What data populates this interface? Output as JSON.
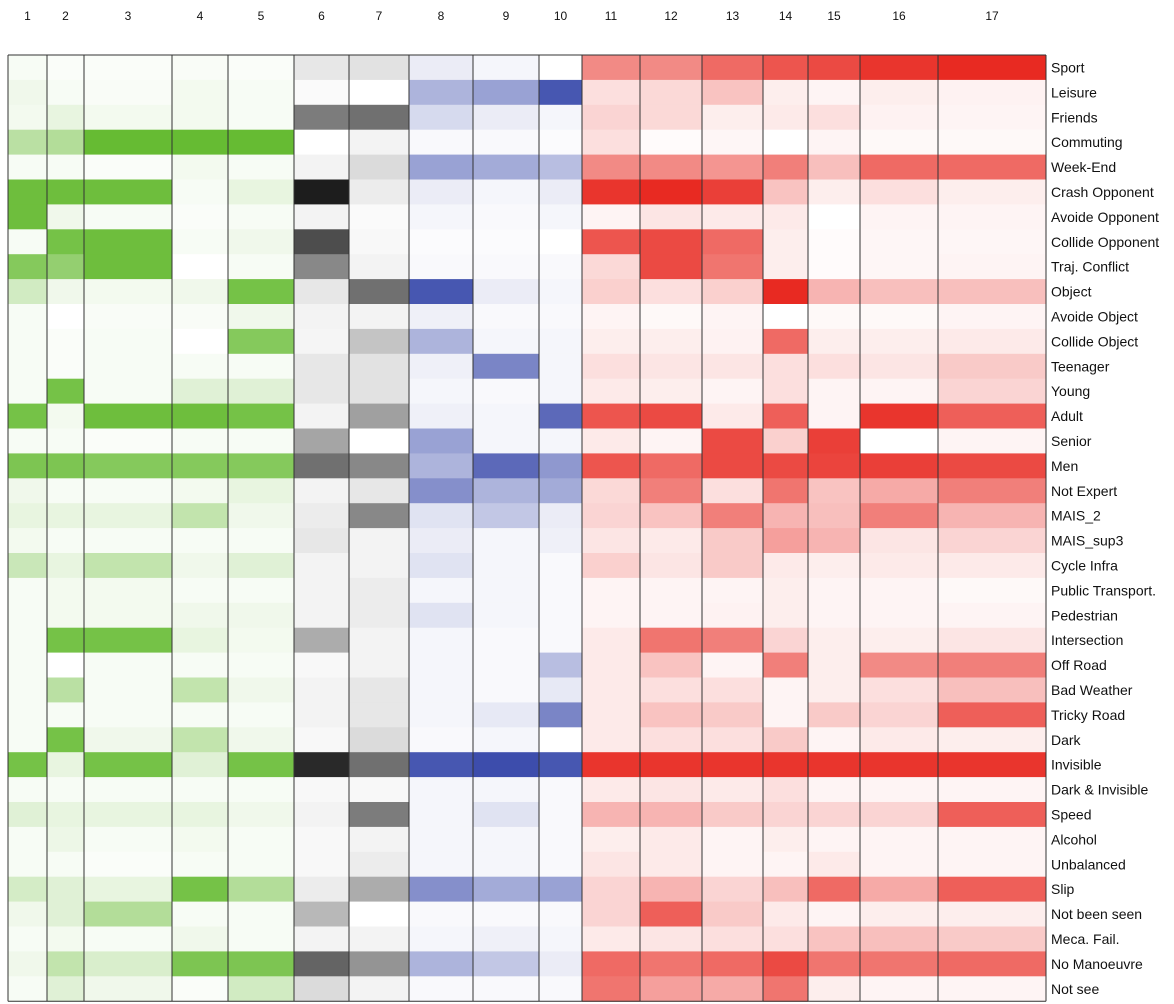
{
  "chart_data": {
    "type": "heatmap",
    "title": "",
    "columns": [
      "1",
      "2",
      "3",
      "4",
      "5",
      "6",
      "7",
      "8",
      "9",
      "10",
      "11",
      "12",
      "13",
      "14",
      "15",
      "16",
      "17"
    ],
    "rows": [
      "Sport",
      "Leisure",
      "Friends",
      "Commuting",
      "Week-End",
      "Crash Opponent",
      "Avoide Opponent",
      "Collide Opponent",
      "Traj. Conflict",
      "Object",
      "Avoide Object",
      "Collide Object",
      "Teenager",
      "Young",
      "Adult",
      "Senior",
      "Men",
      "Not Expert",
      "MAIS_2",
      "MAIS_sup3",
      "Cycle Infra",
      "Public Transport.",
      "Pedestrian",
      "Intersection",
      "Off Road",
      "Bad Weather",
      "Tricky Road",
      "Dark",
      "Invisible",
      "Dark & Invisible",
      "Speed",
      "Alcohol",
      "Unbalanced",
      "Slip",
      "Not been seen",
      "Meca. Fail.",
      "No Manoeuvre",
      "Not see"
    ],
    "column_groups": [
      {
        "columns": [
          "1",
          "2",
          "3",
          "4",
          "5"
        ],
        "color_low": "#ffffff",
        "color_high": "#66bb33"
      },
      {
        "columns": [
          "6",
          "7"
        ],
        "color_low": "#ffffff",
        "color_high": "#111111"
      },
      {
        "columns": [
          "8",
          "9",
          "10"
        ],
        "color_low": "#ffffff",
        "color_high": "#3344a8"
      },
      {
        "columns": [
          "11",
          "12",
          "13",
          "14",
          "15",
          "16",
          "17"
        ],
        "color_low": "#ffffff",
        "color_high": "#e82a22"
      }
    ],
    "value_range": [
      0,
      1
    ],
    "values": [
      [
        0.05,
        0.03,
        0.03,
        0.04,
        0.03,
        0.1,
        0.12,
        0.1,
        0.05,
        0.0,
        0.55,
        0.55,
        0.7,
        0.8,
        0.85,
        0.95,
        1.0
      ],
      [
        0.1,
        0.05,
        0.04,
        0.08,
        0.05,
        0.02,
        0.0,
        0.4,
        0.5,
        0.9,
        0.15,
        0.18,
        0.28,
        0.08,
        0.05,
        0.08,
        0.06
      ],
      [
        0.08,
        0.15,
        0.08,
        0.08,
        0.05,
        0.55,
        0.6,
        0.2,
        0.1,
        0.05,
        0.2,
        0.18,
        0.08,
        0.1,
        0.15,
        0.06,
        0.05
      ],
      [
        0.45,
        0.5,
        1.0,
        1.0,
        1.0,
        0.0,
        0.05,
        0.03,
        0.03,
        0.02,
        0.15,
        0.02,
        0.04,
        0.0,
        0.05,
        0.03,
        0.03
      ],
      [
        0.05,
        0.05,
        0.03,
        0.08,
        0.05,
        0.05,
        0.15,
        0.5,
        0.45,
        0.35,
        0.55,
        0.55,
        0.5,
        0.6,
        0.3,
        0.7,
        0.7
      ],
      [
        0.95,
        0.95,
        0.95,
        0.05,
        0.15,
        0.95,
        0.08,
        0.1,
        0.05,
        0.1,
        0.95,
        1.0,
        0.9,
        0.28,
        0.08,
        0.15,
        0.08
      ],
      [
        0.95,
        0.1,
        0.05,
        0.03,
        0.05,
        0.05,
        0.02,
        0.05,
        0.03,
        0.05,
        0.05,
        0.12,
        0.1,
        0.1,
        0.0,
        0.05,
        0.05
      ],
      [
        0.05,
        0.9,
        0.95,
        0.05,
        0.1,
        0.75,
        0.03,
        0.02,
        0.02,
        0.0,
        0.8,
        0.85,
        0.7,
        0.08,
        0.02,
        0.04,
        0.04
      ],
      [
        0.8,
        0.7,
        0.95,
        0.0,
        0.05,
        0.5,
        0.05,
        0.03,
        0.03,
        0.03,
        0.18,
        0.85,
        0.65,
        0.08,
        0.02,
        0.04,
        0.05
      ],
      [
        0.3,
        0.1,
        0.08,
        0.1,
        0.9,
        0.1,
        0.6,
        0.9,
        0.1,
        0.05,
        0.22,
        0.15,
        0.22,
        1.0,
        0.35,
        0.3,
        0.3
      ],
      [
        0.05,
        0.0,
        0.04,
        0.04,
        0.1,
        0.05,
        0.05,
        0.08,
        0.03,
        0.03,
        0.05,
        0.03,
        0.05,
        0.0,
        0.03,
        0.03,
        0.05
      ],
      [
        0.05,
        0.03,
        0.05,
        0.0,
        0.8,
        0.04,
        0.25,
        0.4,
        0.05,
        0.05,
        0.08,
        0.08,
        0.06,
        0.7,
        0.08,
        0.08,
        0.1
      ],
      [
        0.05,
        0.03,
        0.05,
        0.05,
        0.05,
        0.1,
        0.12,
        0.08,
        0.65,
        0.05,
        0.15,
        0.12,
        0.12,
        0.15,
        0.15,
        0.12,
        0.25
      ],
      [
        0.05,
        0.9,
        0.05,
        0.2,
        0.2,
        0.1,
        0.12,
        0.05,
        0.03,
        0.05,
        0.1,
        0.08,
        0.05,
        0.15,
        0.05,
        0.05,
        0.2
      ],
      [
        0.9,
        0.08,
        0.95,
        0.95,
        0.9,
        0.05,
        0.4,
        0.08,
        0.05,
        0.8,
        0.8,
        0.85,
        0.1,
        0.75,
        0.05,
        0.95,
        0.75
      ],
      [
        0.05,
        0.05,
        0.03,
        0.05,
        0.05,
        0.38,
        0.0,
        0.5,
        0.05,
        0.05,
        0.1,
        0.05,
        0.85,
        0.22,
        0.9,
        0.0,
        0.05
      ],
      [
        0.85,
        0.85,
        0.8,
        0.8,
        0.8,
        0.6,
        0.5,
        0.4,
        0.8,
        0.55,
        0.8,
        0.7,
        0.85,
        0.85,
        0.88,
        0.9,
        0.85
      ],
      [
        0.1,
        0.05,
        0.05,
        0.08,
        0.15,
        0.05,
        0.1,
        0.6,
        0.4,
        0.45,
        0.18,
        0.6,
        0.15,
        0.65,
        0.28,
        0.4,
        0.6
      ],
      [
        0.15,
        0.15,
        0.15,
        0.4,
        0.1,
        0.08,
        0.5,
        0.15,
        0.3,
        0.1,
        0.2,
        0.28,
        0.6,
        0.35,
        0.3,
        0.6,
        0.35
      ],
      [
        0.08,
        0.05,
        0.05,
        0.05,
        0.05,
        0.1,
        0.05,
        0.1,
        0.05,
        0.08,
        0.12,
        0.1,
        0.25,
        0.45,
        0.35,
        0.12,
        0.2
      ],
      [
        0.35,
        0.15,
        0.4,
        0.1,
        0.2,
        0.05,
        0.05,
        0.15,
        0.05,
        0.03,
        0.22,
        0.12,
        0.25,
        0.1,
        0.08,
        0.1,
        0.1
      ],
      [
        0.05,
        0.08,
        0.08,
        0.05,
        0.05,
        0.05,
        0.08,
        0.05,
        0.05,
        0.03,
        0.05,
        0.05,
        0.05,
        0.08,
        0.05,
        0.05,
        0.03
      ],
      [
        0.05,
        0.08,
        0.08,
        0.1,
        0.1,
        0.05,
        0.08,
        0.15,
        0.05,
        0.03,
        0.05,
        0.05,
        0.06,
        0.08,
        0.05,
        0.05,
        0.05
      ],
      [
        0.05,
        0.9,
        0.9,
        0.15,
        0.08,
        0.35,
        0.05,
        0.05,
        0.03,
        0.03,
        0.1,
        0.65,
        0.6,
        0.2,
        0.08,
        0.08,
        0.12
      ],
      [
        0.05,
        0.0,
        0.05,
        0.05,
        0.05,
        0.03,
        0.05,
        0.05,
        0.03,
        0.35,
        0.1,
        0.28,
        0.05,
        0.6,
        0.08,
        0.55,
        0.6
      ],
      [
        0.05,
        0.45,
        0.05,
        0.4,
        0.1,
        0.05,
        0.1,
        0.05,
        0.03,
        0.12,
        0.1,
        0.15,
        0.15,
        0.05,
        0.08,
        0.15,
        0.3
      ],
      [
        0.05,
        0.05,
        0.05,
        0.05,
        0.05,
        0.05,
        0.1,
        0.05,
        0.12,
        0.65,
        0.1,
        0.28,
        0.25,
        0.05,
        0.25,
        0.2,
        0.75
      ],
      [
        0.05,
        0.9,
        0.1,
        0.4,
        0.1,
        0.03,
        0.15,
        0.03,
        0.05,
        0.0,
        0.1,
        0.15,
        0.15,
        0.25,
        0.05,
        0.1,
        0.08
      ],
      [
        0.9,
        0.15,
        0.9,
        0.2,
        0.9,
        0.9,
        0.6,
        0.9,
        0.95,
        0.9,
        0.95,
        0.95,
        0.95,
        0.95,
        0.95,
        0.95,
        0.95
      ],
      [
        0.05,
        0.05,
        0.05,
        0.05,
        0.05,
        0.03,
        0.03,
        0.05,
        0.05,
        0.03,
        0.1,
        0.12,
        0.1,
        0.15,
        0.05,
        0.05,
        0.05
      ],
      [
        0.2,
        0.15,
        0.15,
        0.15,
        0.1,
        0.05,
        0.55,
        0.05,
        0.15,
        0.03,
        0.35,
        0.35,
        0.25,
        0.2,
        0.2,
        0.2,
        0.75
      ],
      [
        0.05,
        0.12,
        0.05,
        0.08,
        0.05,
        0.03,
        0.05,
        0.05,
        0.05,
        0.03,
        0.08,
        0.1,
        0.05,
        0.08,
        0.05,
        0.05,
        0.05
      ],
      [
        0.05,
        0.05,
        0.03,
        0.05,
        0.05,
        0.03,
        0.08,
        0.05,
        0.05,
        0.03,
        0.12,
        0.1,
        0.05,
        0.05,
        0.1,
        0.05,
        0.05
      ],
      [
        0.28,
        0.2,
        0.15,
        0.9,
        0.5,
        0.08,
        0.35,
        0.6,
        0.45,
        0.5,
        0.2,
        0.35,
        0.2,
        0.3,
        0.7,
        0.4,
        0.75
      ],
      [
        0.1,
        0.2,
        0.5,
        0.05,
        0.05,
        0.3,
        0.0,
        0.03,
        0.03,
        0.03,
        0.2,
        0.75,
        0.25,
        0.1,
        0.05,
        0.08,
        0.08
      ],
      [
        0.05,
        0.08,
        0.05,
        0.1,
        0.05,
        0.05,
        0.05,
        0.05,
        0.08,
        0.05,
        0.1,
        0.12,
        0.15,
        0.15,
        0.28,
        0.3,
        0.25
      ],
      [
        0.1,
        0.4,
        0.25,
        0.85,
        0.85,
        0.65,
        0.45,
        0.4,
        0.3,
        0.1,
        0.7,
        0.65,
        0.7,
        0.85,
        0.65,
        0.65,
        0.7
      ],
      [
        0.05,
        0.2,
        0.1,
        0.03,
        0.3,
        0.15,
        0.05,
        0.03,
        0.03,
        0.03,
        0.65,
        0.45,
        0.4,
        0.65,
        0.08,
        0.05,
        0.05
      ]
    ]
  }
}
